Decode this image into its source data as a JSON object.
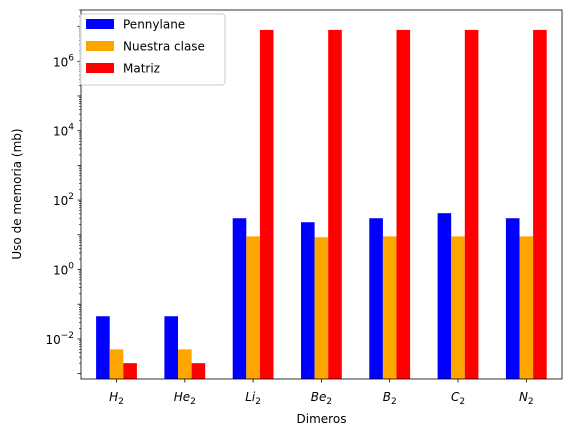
{
  "chart_data": {
    "type": "bar",
    "xlabel": "Dimeros",
    "ylabel": "Uso de memoria (mb)",
    "yscale": "log",
    "ylim": [
      0.0007,
      30000000
    ],
    "categories": [
      {
        "base": "H",
        "sub": "2"
      },
      {
        "base": "He",
        "sub": "2"
      },
      {
        "base": "Li",
        "sub": "2"
      },
      {
        "base": "Be",
        "sub": "2"
      },
      {
        "base": "B",
        "sub": "2"
      },
      {
        "base": "C",
        "sub": "2"
      },
      {
        "base": "N",
        "sub": "2"
      }
    ],
    "y_ticks": [
      {
        "value": 0.01,
        "base": "10",
        "exp": "−2"
      },
      {
        "value": 1,
        "base": "10",
        "exp": "0"
      },
      {
        "value": 100,
        "base": "10",
        "exp": "2"
      },
      {
        "value": 10000,
        "base": "10",
        "exp": "4"
      },
      {
        "value": 1000000,
        "base": "10",
        "exp": "6"
      }
    ],
    "series": [
      {
        "name": "Pennylane",
        "color": "#0000ff",
        "values": [
          0.045,
          0.045,
          30,
          23,
          30,
          42,
          30
        ]
      },
      {
        "name": "Nuestra clase",
        "color": "#ffa500",
        "values": [
          0.005,
          0.005,
          9,
          8.5,
          9,
          9,
          9
        ]
      },
      {
        "name": "Matriz",
        "color": "#ff0000",
        "values": [
          0.002,
          0.002,
          8000000,
          8000000,
          8000000,
          8000000,
          8000000
        ]
      }
    ],
    "legend_position": "top-left",
    "grid": false
  }
}
